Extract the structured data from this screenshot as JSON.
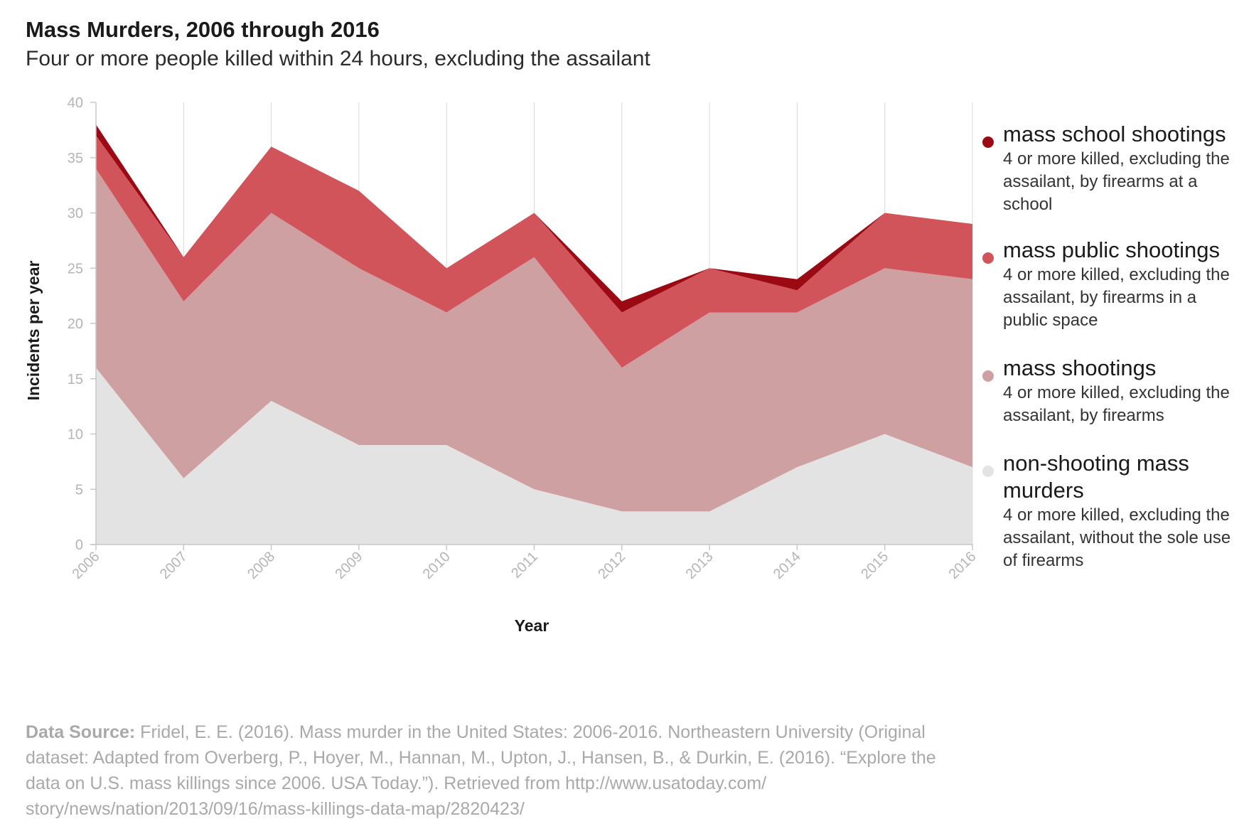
{
  "title": "Mass Murders, 2006 through 2016",
  "subtitle": "Four or more people killed within 24 hours, excluding the assailant",
  "source": {
    "label": "Data Source:",
    "text": "Fridel, E. E. (2016). Mass murder in the United States: 2006-2016. Northeastern University (Original dataset: Adapted from Overberg, P., Hoyer, M., Hannan, M., Upton, J., Hansen, B., & Durkin, E. (2016). “Explore the data on U.S. mass killings since 2006. USA Today.”). Retrieved from http://www.usatoday.com/ story/news/nation/2013/09/16/mass-killings-data-map/2820423/"
  },
  "legend": [
    {
      "name": "mass school shootings",
      "desc": "4 or more killed, excluding the assailant, by firearms at a school",
      "color": "#9b0a12"
    },
    {
      "name": "mass public shootings",
      "desc": "4 or more killed, excluding the assailant, by firearms in a public space",
      "color": "#d0545a"
    },
    {
      "name": "mass shootings",
      "desc": "4 or more killed, excluding the assailant, by firearms",
      "color": "#cfa0a1"
    },
    {
      "name": "non-shooting mass murders",
      "desc": "4 or more killed, excluding the assailant, without the sole use of firearms",
      "color": "#e3e3e3"
    }
  ],
  "chart_data": {
    "type": "area",
    "stacked": true,
    "xlabel": "Year",
    "ylabel": "Incidents per year",
    "ylim": [
      0,
      40
    ],
    "yticks": [
      0,
      5,
      10,
      15,
      20,
      25,
      30,
      35,
      40
    ],
    "x": [
      "2006",
      "2007",
      "2008",
      "2009",
      "2010",
      "2011",
      "2012",
      "2013",
      "2014",
      "2015",
      "2016"
    ],
    "grid": "vertical",
    "legend_position": "right",
    "series": [
      {
        "name": "non-shooting mass murders",
        "color": "#e3e3e3",
        "values": [
          16,
          6,
          13,
          9,
          9,
          5,
          3,
          3,
          7,
          10,
          7
        ]
      },
      {
        "name": "mass shootings",
        "color": "#cfa0a1",
        "values": [
          18,
          16,
          17,
          16,
          12,
          21,
          13,
          18,
          14,
          15,
          17
        ]
      },
      {
        "name": "mass public shootings",
        "color": "#d0545a",
        "values": [
          3,
          4,
          6,
          7,
          4,
          4,
          5,
          4,
          2,
          5,
          5
        ]
      },
      {
        "name": "mass school shootings",
        "color": "#9b0a12",
        "values": [
          1,
          0,
          0,
          0,
          0,
          0,
          1,
          0,
          1,
          0,
          0
        ]
      }
    ]
  }
}
